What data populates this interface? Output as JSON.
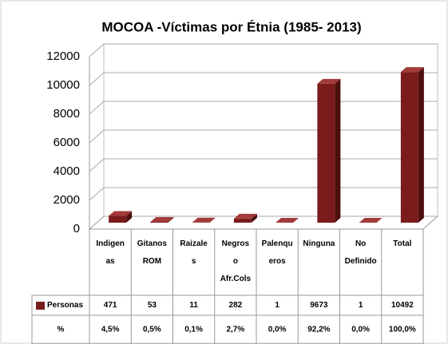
{
  "chart_data": {
    "type": "bar3d",
    "title": "MOCOA -Víctimas por Étnia (1985- 2013)",
    "categories": [
      "Indigenas",
      "Gitanos ROM",
      "Raizales",
      "Negros o Afr.Cols",
      "Palenqueros",
      "Ninguna",
      "No Definido",
      "Total"
    ],
    "series": [
      {
        "name": "Personas",
        "color": "#7a1c1c",
        "values": [
          471,
          53,
          11,
          282,
          1,
          9673,
          1,
          10492
        ]
      }
    ],
    "percent": {
      "name": "%",
      "values": [
        4.5,
        0.5,
        0.1,
        2.7,
        0.0,
        92.2,
        0.0,
        100.0
      ],
      "value_labels": [
        "4,5%",
        "0,5%",
        "0,1%",
        "2,7%",
        "0,0%",
        "92,2%",
        "0,0%",
        "100,0%"
      ]
    },
    "ylim": [
      0,
      12000
    ],
    "yticks": [
      0,
      2000,
      4000,
      6000,
      8000,
      10000,
      12000
    ],
    "grid": true
  }
}
